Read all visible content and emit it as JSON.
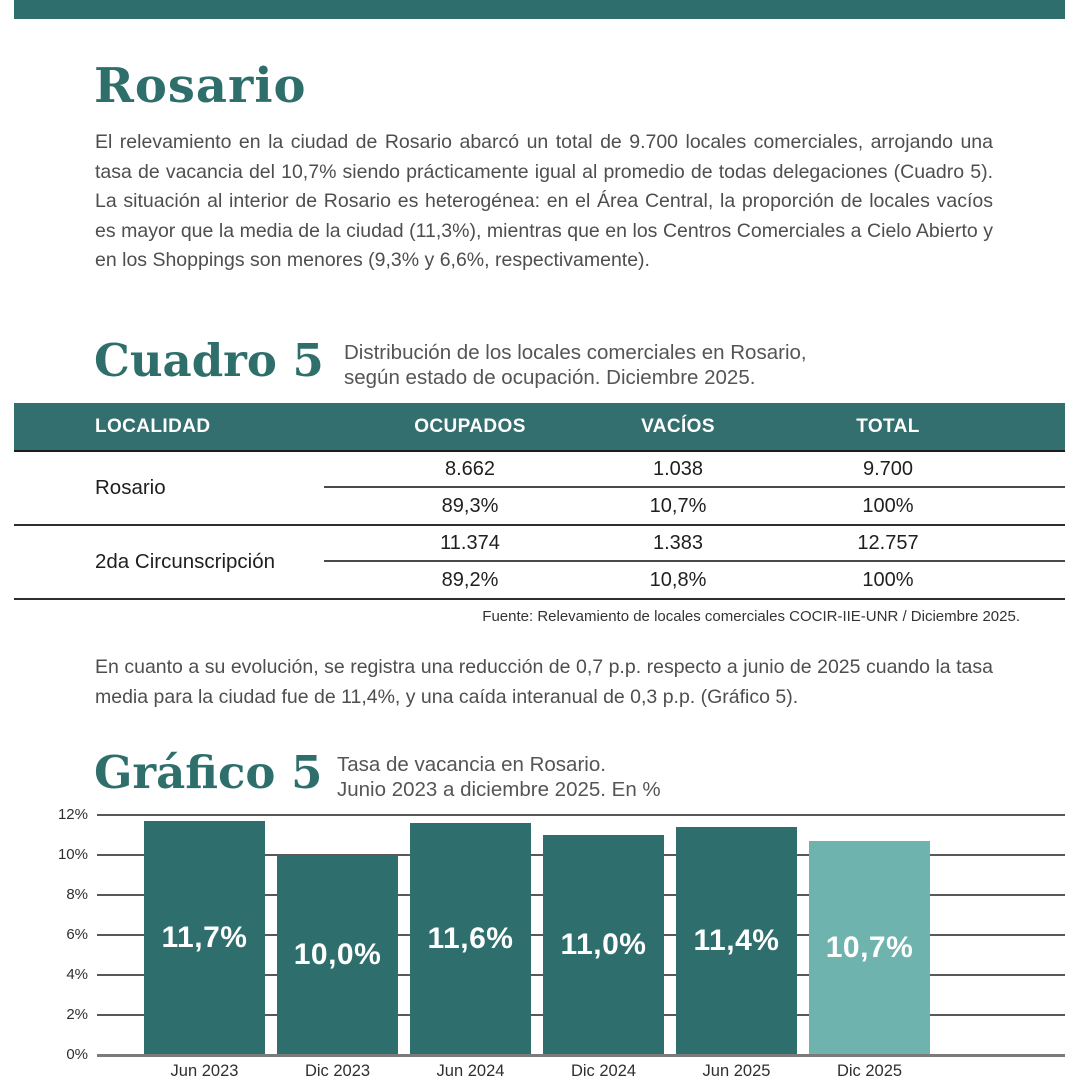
{
  "page": {
    "title": "Rosario",
    "paragraph_1": "El relevamiento en la ciudad de Rosario abarcó un total de 9.700 locales comerciales, arrojando una tasa de vacancia del 10,7% siendo prácticamente igual al promedio de todas delegaciones (Cuadro 5). La situación al interior de Rosario es heterogénea: en el Área Central, la proporción de locales vacíos es mayor que la media de la ciudad (11,3%), mientras que en los Centros Comerciales a Cielo Abierto y en los Shoppings son menores (9,3% y 6,6%, respectivamente).",
    "paragraph_2": "En cuanto a su evolución, se registra una reducción de 0,7 p.p. respecto a junio de 2025 cuando la tasa media para la ciudad fue de 11,4%, y una caída interanual de 0,3 p.p. (Gráfico 5)."
  },
  "colors": {
    "teal_dark": "#2e6e6d",
    "teal_light": "#6fb3ae",
    "heading_teal": "#2e6f6c"
  },
  "cuadro": {
    "label": "Cuadro 5",
    "caption_line1": "Distribución de los locales comerciales en Rosario,",
    "caption_line2": "según estado de ocupación. Diciembre 2025."
  },
  "table": {
    "headers": [
      "LOCALIDAD",
      "OCUPADOS",
      "VACÍOS",
      "TOTAL"
    ],
    "groups": [
      {
        "label": "Rosario",
        "counts": [
          "8.662",
          "1.038",
          "9.700"
        ],
        "percents": [
          "89,3%",
          "10,7%",
          "100%"
        ]
      },
      {
        "label": "2da Circunscripción",
        "counts": [
          "11.374",
          "1.383",
          "12.757"
        ],
        "percents": [
          "89,2%",
          "10,8%",
          "100%"
        ]
      }
    ],
    "source": "Fuente: Relevamiento de locales comerciales COCIR-IIE-UNR / Diciembre 2025."
  },
  "grafico": {
    "label": "Gráfico 5",
    "caption_line1": "Tasa de vacancia en Rosario.",
    "caption_line2": "Junio 2023 a diciembre 2025. En %"
  },
  "chart_data": {
    "type": "bar",
    "title": "Tasa de vacancia en Rosario. Junio 2023 a diciembre 2025. En %",
    "categories": [
      "Jun 2023",
      "Dic 2023",
      "Jun 2024",
      "Dic 2024",
      "Jun 2025",
      "Dic 2025"
    ],
    "values": [
      11.7,
      10.0,
      11.6,
      11.0,
      11.4,
      10.7
    ],
    "value_labels": [
      "11,7%",
      "10,0%",
      "11,6%",
      "11,0%",
      "11,4%",
      "10,7%"
    ],
    "bar_colors": [
      "#2e6e6d",
      "#2e6e6d",
      "#2e6e6d",
      "#2e6e6d",
      "#2e6e6d",
      "#6fb3ae"
    ],
    "xlabel": "",
    "ylabel": "",
    "ylim": [
      0,
      12
    ],
    "y_ticks": [
      "12%",
      "10%",
      "8%",
      "6%",
      "4%",
      "2%",
      "0%"
    ],
    "grid": true,
    "legend_position": "none"
  }
}
